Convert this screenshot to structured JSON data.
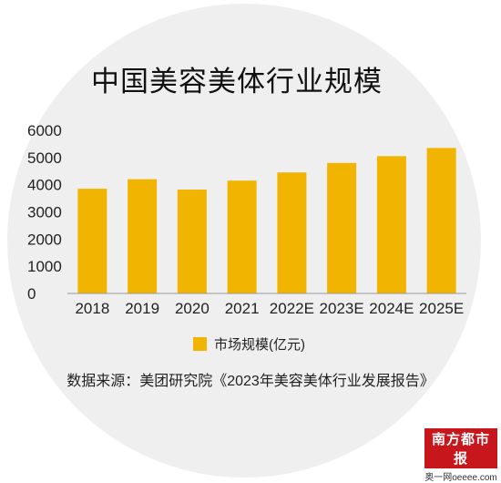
{
  "chart_data": {
    "type": "bar",
    "title": "中国美容美体行业规模",
    "categories": [
      "2018",
      "2019",
      "2020",
      "2021",
      "2022E",
      "2023E",
      "2024E",
      "2025E"
    ],
    "series": [
      {
        "name": "市场规模(亿元)",
        "values": [
          3850,
          4200,
          3820,
          4150,
          4450,
          4800,
          5050,
          5350
        ]
      }
    ],
    "ylim": [
      0,
      6000
    ],
    "yticks": [
      0,
      1000,
      2000,
      3000,
      4000,
      5000,
      6000
    ],
    "xlabel": "",
    "ylabel": "",
    "grid": false,
    "legend_position": "bottom",
    "bar_color": "#f1b400",
    "source": "数据来源：美团研究院《2023年美容美体行业发展报告》"
  },
  "watermark": {
    "logo": "南方都市报",
    "site": "奥一网oeeee.com"
  }
}
